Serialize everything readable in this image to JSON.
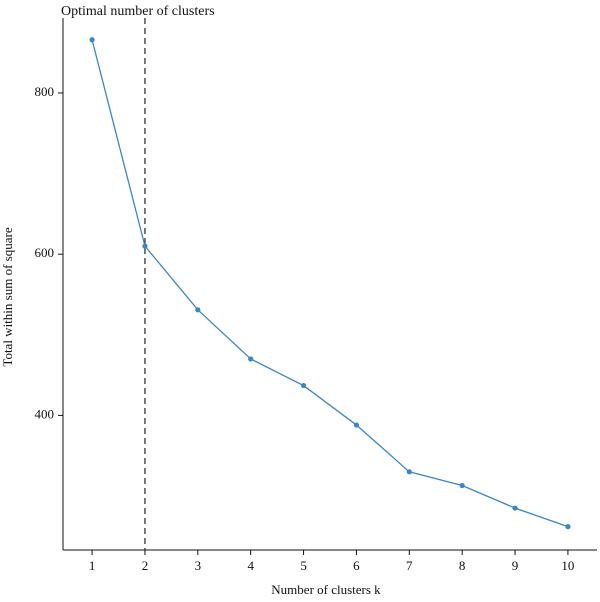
{
  "chart_data": {
    "type": "line",
    "title": "Optimal number of clusters",
    "xlabel": "Number of clusters k",
    "ylabel": "Total within sum of square",
    "x": [
      1,
      2,
      3,
      4,
      5,
      6,
      7,
      8,
      9,
      10
    ],
    "series": [
      {
        "values": [
          866,
          610,
          531,
          470,
          437,
          388,
          330,
          313,
          285,
          262
        ]
      }
    ],
    "optimal_k": 2,
    "xlim": [
      0.45,
      10.55
    ],
    "ylim": [
      233,
      893
    ],
    "xticks": [
      1,
      2,
      3,
      4,
      5,
      6,
      7,
      8,
      9,
      10
    ],
    "yticks": [
      400,
      600,
      800
    ],
    "grid": false,
    "colors": {
      "line": "#3A87C8",
      "vline": "#333333",
      "axis": "#111111"
    }
  }
}
